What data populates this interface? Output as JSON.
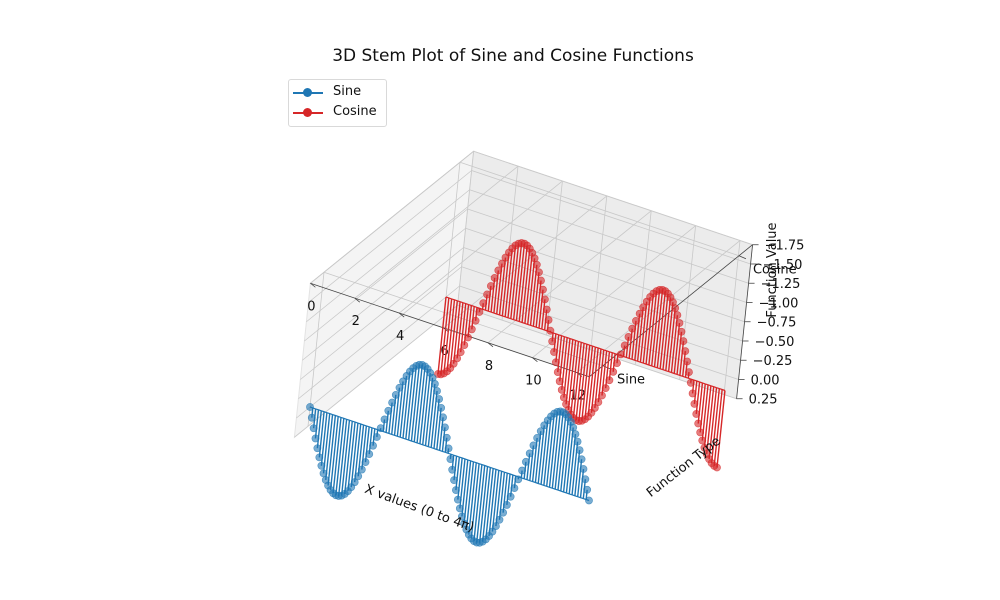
{
  "chart_data": {
    "type": "3d-stem",
    "title": "3D Stem Plot of Sine and Cosine Functions",
    "xlabel": "X values (0 to 4π)",
    "ylabel": "Function Type",
    "zlabel": "Function Value",
    "x_ticks": [
      "0",
      "2",
      "4",
      "6",
      "8",
      "10",
      "12"
    ],
    "y_ticks": [
      "Sine",
      "Cosine"
    ],
    "z_ticks": [
      "−1.75",
      "−1.50",
      "−1.25",
      "−1.00",
      "−0.75",
      "−0.50",
      "−0.25",
      "0.00",
      "0.25"
    ],
    "xlim": [
      0,
      12.566
    ],
    "zlim": [
      -1.75,
      0.25
    ],
    "n_points": 100,
    "legend_position": "top-left",
    "grid": true,
    "series": [
      {
        "name": "Sine",
        "function": "sin(x)",
        "baseline_z": 0,
        "y_position": 0,
        "color": "#1f77b4"
      },
      {
        "name": "Cosine",
        "function": "cos(x)",
        "baseline_z": 0,
        "y_position": 1,
        "color": "#d62728"
      }
    ]
  }
}
